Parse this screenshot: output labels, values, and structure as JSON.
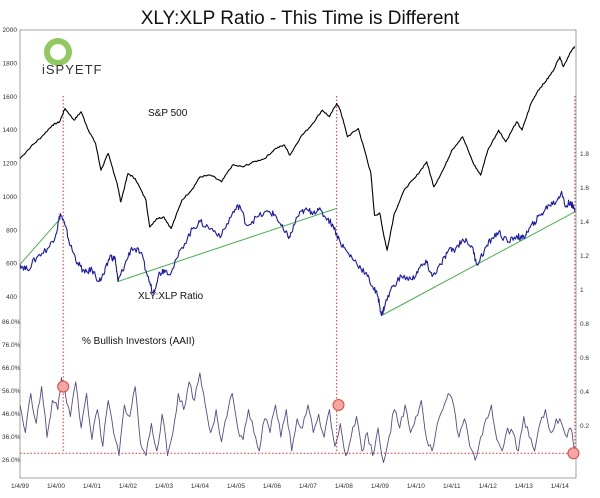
{
  "chart_data": {
    "type": "line",
    "title": "XLY:XLP Ratio - This Time is Different",
    "logo": "iSPYETF",
    "x_ticks": [
      "1/4/99",
      "1/4/00",
      "1/4/01",
      "1/4/02",
      "1/4/03",
      "1/4/04",
      "1/4/05",
      "1/4/06",
      "1/4/07",
      "1/4/08",
      "1/4/09",
      "1/4/10",
      "1/4/11",
      "1/4/12",
      "1/4/13",
      "1/4/14"
    ],
    "x_range": [
      1999.0,
      2014.45
    ],
    "left_axis_upper": {
      "range": [
        400,
        2000
      ],
      "ticks": [
        "400",
        "600",
        "800",
        "1000",
        "1200",
        "1400",
        "1600",
        "1800",
        "2000"
      ]
    },
    "left_axis_lower": {
      "range": [
        20,
        90
      ],
      "ticks": [
        "26.0%",
        "36.0%",
        "46.0%",
        "56.0%",
        "66.0%",
        "76.0%",
        "86.0%"
      ]
    },
    "right_axis": {
      "range": [
        0,
        2.0
      ],
      "ticks": [
        "0.2",
        "0.4",
        "0.6",
        "0.8",
        "1",
        "1.2",
        "1.4",
        "1.6",
        "1.8"
      ]
    },
    "series": [
      {
        "name": "S&P 500",
        "color": "#000000",
        "axis": "left_upper",
        "points": [
          [
            1999.0,
            1230
          ],
          [
            1999.3,
            1300
          ],
          [
            1999.6,
            1360
          ],
          [
            1999.9,
            1430
          ],
          [
            2000.1,
            1450
          ],
          [
            2000.25,
            1530
          ],
          [
            2000.5,
            1460
          ],
          [
            2000.7,
            1510
          ],
          [
            2000.9,
            1400
          ],
          [
            2001.1,
            1320
          ],
          [
            2001.25,
            1160
          ],
          [
            2001.45,
            1260
          ],
          [
            2001.7,
            1080
          ],
          [
            2001.8,
            970
          ],
          [
            2002.0,
            1140
          ],
          [
            2002.2,
            1110
          ],
          [
            2002.5,
            980
          ],
          [
            2002.6,
            820
          ],
          [
            2002.8,
            870
          ],
          [
            2003.0,
            880
          ],
          [
            2003.2,
            810
          ],
          [
            2003.5,
            980
          ],
          [
            2003.8,
            1050
          ],
          [
            2004.0,
            1120
          ],
          [
            2004.3,
            1130
          ],
          [
            2004.6,
            1090
          ],
          [
            2004.9,
            1190
          ],
          [
            2005.2,
            1180
          ],
          [
            2005.5,
            1210
          ],
          [
            2005.8,
            1230
          ],
          [
            2006.1,
            1290
          ],
          [
            2006.35,
            1310
          ],
          [
            2006.5,
            1250
          ],
          [
            2006.8,
            1360
          ],
          [
            2007.1,
            1430
          ],
          [
            2007.4,
            1520
          ],
          [
            2007.6,
            1480
          ],
          [
            2007.8,
            1560
          ],
          [
            2007.9,
            1520
          ],
          [
            2008.1,
            1360
          ],
          [
            2008.4,
            1410
          ],
          [
            2008.6,
            1260
          ],
          [
            2008.75,
            1140
          ],
          [
            2008.85,
            890
          ],
          [
            2009.0,
            900
          ],
          [
            2009.1,
            780
          ],
          [
            2009.2,
            680
          ],
          [
            2009.4,
            900
          ],
          [
            2009.7,
            1050
          ],
          [
            2010.0,
            1120
          ],
          [
            2010.3,
            1210
          ],
          [
            2010.5,
            1060
          ],
          [
            2010.8,
            1180
          ],
          [
            2011.0,
            1280
          ],
          [
            2011.3,
            1360
          ],
          [
            2011.6,
            1200
          ],
          [
            2011.8,
            1130
          ],
          [
            2012.0,
            1280
          ],
          [
            2012.3,
            1400
          ],
          [
            2012.5,
            1330
          ],
          [
            2012.8,
            1450
          ],
          [
            2012.95,
            1400
          ],
          [
            2013.2,
            1560
          ],
          [
            2013.4,
            1640
          ],
          [
            2013.6,
            1690
          ],
          [
            2013.8,
            1750
          ],
          [
            2014.0,
            1840
          ],
          [
            2014.1,
            1780
          ],
          [
            2014.3,
            1870
          ],
          [
            2014.42,
            1900
          ]
        ]
      },
      {
        "name": "XLY:XLP Ratio",
        "color": "#1a1aa8",
        "axis": "right",
        "points": [
          [
            1999.0,
            1.15
          ],
          [
            1999.2,
            1.12
          ],
          [
            1999.5,
            1.2
          ],
          [
            1999.8,
            1.25
          ],
          [
            2000.0,
            1.33
          ],
          [
            2000.12,
            1.45
          ],
          [
            2000.25,
            1.38
          ],
          [
            2000.4,
            1.26
          ],
          [
            2000.6,
            1.16
          ],
          [
            2000.8,
            1.1
          ],
          [
            2001.0,
            1.12
          ],
          [
            2001.2,
            1.05
          ],
          [
            2001.35,
            1.1
          ],
          [
            2001.5,
            1.2
          ],
          [
            2001.65,
            1.18
          ],
          [
            2001.72,
            1.05
          ],
          [
            2001.9,
            1.14
          ],
          [
            2002.1,
            1.25
          ],
          [
            2002.35,
            1.22
          ],
          [
            2002.55,
            1.08
          ],
          [
            2002.7,
            0.98
          ],
          [
            2002.85,
            1.09
          ],
          [
            2003.0,
            1.12
          ],
          [
            2003.2,
            1.1
          ],
          [
            2003.5,
            1.25
          ],
          [
            2003.8,
            1.36
          ],
          [
            2004.0,
            1.4
          ],
          [
            2004.3,
            1.36
          ],
          [
            2004.6,
            1.32
          ],
          [
            2004.9,
            1.45
          ],
          [
            2005.1,
            1.5
          ],
          [
            2005.3,
            1.38
          ],
          [
            2005.6,
            1.43
          ],
          [
            2005.9,
            1.46
          ],
          [
            2006.1,
            1.44
          ],
          [
            2006.35,
            1.34
          ],
          [
            2006.5,
            1.31
          ],
          [
            2006.7,
            1.43
          ],
          [
            2006.9,
            1.47
          ],
          [
            2007.1,
            1.46
          ],
          [
            2007.3,
            1.47
          ],
          [
            2007.55,
            1.42
          ],
          [
            2007.7,
            1.38
          ],
          [
            2007.9,
            1.28
          ],
          [
            2008.1,
            1.22
          ],
          [
            2008.35,
            1.16
          ],
          [
            2008.6,
            1.1
          ],
          [
            2008.8,
            1.02
          ],
          [
            2008.95,
            0.96
          ],
          [
            2009.05,
            0.85
          ],
          [
            2009.15,
            0.92
          ],
          [
            2009.35,
            1.02
          ],
          [
            2009.6,
            1.08
          ],
          [
            2009.9,
            1.06
          ],
          [
            2010.1,
            1.13
          ],
          [
            2010.3,
            1.16
          ],
          [
            2010.45,
            1.08
          ],
          [
            2010.7,
            1.15
          ],
          [
            2010.9,
            1.23
          ],
          [
            2011.1,
            1.24
          ],
          [
            2011.3,
            1.3
          ],
          [
            2011.55,
            1.26
          ],
          [
            2011.7,
            1.15
          ],
          [
            2011.9,
            1.23
          ],
          [
            2012.1,
            1.3
          ],
          [
            2012.3,
            1.34
          ],
          [
            2012.55,
            1.28
          ],
          [
            2012.8,
            1.32
          ],
          [
            2012.95,
            1.3
          ],
          [
            2013.1,
            1.34
          ],
          [
            2013.3,
            1.4
          ],
          [
            2013.5,
            1.45
          ],
          [
            2013.7,
            1.5
          ],
          [
            2013.9,
            1.52
          ],
          [
            2014.05,
            1.58
          ],
          [
            2014.15,
            1.49
          ],
          [
            2014.3,
            1.52
          ],
          [
            2014.42,
            1.46
          ]
        ]
      },
      {
        "name": "% Bullish Investors (AAII)",
        "color": "#5a4a8a",
        "axis": "left_lower",
        "points": [
          [
            1999.0,
            50
          ],
          [
            1999.15,
            38
          ],
          [
            1999.3,
            55
          ],
          [
            1999.45,
            42
          ],
          [
            1999.6,
            58
          ],
          [
            1999.75,
            36
          ],
          [
            1999.9,
            52
          ],
          [
            2000.05,
            48
          ],
          [
            2000.15,
            62
          ],
          [
            2000.25,
            56
          ],
          [
            2000.4,
            45
          ],
          [
            2000.55,
            60
          ],
          [
            2000.7,
            40
          ],
          [
            2000.85,
            55
          ],
          [
            2001.0,
            35
          ],
          [
            2001.15,
            48
          ],
          [
            2001.3,
            32
          ],
          [
            2001.45,
            52
          ],
          [
            2001.6,
            38
          ],
          [
            2001.75,
            28
          ],
          [
            2001.9,
            50
          ],
          [
            2002.05,
            45
          ],
          [
            2002.2,
            58
          ],
          [
            2002.35,
            33
          ],
          [
            2002.5,
            28
          ],
          [
            2002.65,
            42
          ],
          [
            2002.8,
            30
          ],
          [
            2002.95,
            46
          ],
          [
            2003.1,
            28
          ],
          [
            2003.25,
            38
          ],
          [
            2003.4,
            55
          ],
          [
            2003.55,
            48
          ],
          [
            2003.7,
            60
          ],
          [
            2003.85,
            52
          ],
          [
            2004.0,
            64
          ],
          [
            2004.15,
            50
          ],
          [
            2004.3,
            38
          ],
          [
            2004.45,
            48
          ],
          [
            2004.6,
            34
          ],
          [
            2004.75,
            45
          ],
          [
            2004.9,
            55
          ],
          [
            2005.05,
            40
          ],
          [
            2005.2,
            35
          ],
          [
            2005.35,
            48
          ],
          [
            2005.5,
            38
          ],
          [
            2005.65,
            30
          ],
          [
            2005.8,
            44
          ],
          [
            2005.95,
            38
          ],
          [
            2006.1,
            50
          ],
          [
            2006.25,
            36
          ],
          [
            2006.4,
            48
          ],
          [
            2006.55,
            30
          ],
          [
            2006.7,
            44
          ],
          [
            2006.85,
            40
          ],
          [
            2007.0,
            50
          ],
          [
            2007.15,
            38
          ],
          [
            2007.3,
            46
          ],
          [
            2007.45,
            36
          ],
          [
            2007.6,
            48
          ],
          [
            2007.75,
            32
          ],
          [
            2007.9,
            42
          ],
          [
            2008.05,
            28
          ],
          [
            2008.2,
            36
          ],
          [
            2008.35,
            45
          ],
          [
            2008.5,
            30
          ],
          [
            2008.65,
            38
          ],
          [
            2008.8,
            28
          ],
          [
            2008.95,
            40
          ],
          [
            2009.1,
            25
          ],
          [
            2009.25,
            36
          ],
          [
            2009.4,
            48
          ],
          [
            2009.55,
            40
          ],
          [
            2009.7,
            50
          ],
          [
            2009.85,
            38
          ],
          [
            2010.0,
            45
          ],
          [
            2010.15,
            52
          ],
          [
            2010.3,
            35
          ],
          [
            2010.45,
            30
          ],
          [
            2010.6,
            42
          ],
          [
            2010.75,
            48
          ],
          [
            2010.9,
            55
          ],
          [
            2011.05,
            50
          ],
          [
            2011.2,
            36
          ],
          [
            2011.35,
            44
          ],
          [
            2011.5,
            32
          ],
          [
            2011.65,
            26
          ],
          [
            2011.8,
            36
          ],
          [
            2011.95,
            44
          ],
          [
            2012.1,
            50
          ],
          [
            2012.25,
            35
          ],
          [
            2012.4,
            30
          ],
          [
            2012.55,
            40
          ],
          [
            2012.7,
            38
          ],
          [
            2012.85,
            30
          ],
          [
            2013.0,
            45
          ],
          [
            2013.15,
            36
          ],
          [
            2013.3,
            30
          ],
          [
            2013.45,
            42
          ],
          [
            2013.6,
            48
          ],
          [
            2013.75,
            38
          ],
          [
            2013.9,
            44
          ],
          [
            2014.05,
            42
          ],
          [
            2014.2,
            36
          ],
          [
            2014.3,
            40
          ],
          [
            2014.42,
            30
          ]
        ]
      }
    ],
    "annotations": {
      "sp_label": "S&P 500",
      "ratio_label": "XLY:XLP Ratio",
      "aaii_label": "% Bullish Investors (AAII)",
      "vertical_markers": [
        2000.2,
        2007.8,
        2014.42
      ],
      "horizontal_line_pct": 29.0,
      "highlight_points": [
        [
          2000.2,
          58
        ],
        [
          2007.85,
          50
        ],
        [
          2014.38,
          29
        ]
      ],
      "trendlines": [
        {
          "series": "ratio",
          "from": [
            2001.72,
            1.05
          ],
          "to": [
            2007.8,
            1.48
          ]
        },
        {
          "series": "ratio",
          "from": [
            2009.05,
            0.85
          ],
          "to": [
            2014.42,
            1.46
          ]
        },
        {
          "series": "ratio",
          "from": [
            1999.0,
            1.15
          ],
          "to": [
            2000.12,
            1.42
          ]
        }
      ]
    },
    "colors": {
      "marker": "#e0302a",
      "trend": "#4caf50",
      "highlight_fill": "#f4a6a0",
      "highlight_stroke": "#d94b42"
    },
    "grid": false,
    "legend": "none"
  }
}
